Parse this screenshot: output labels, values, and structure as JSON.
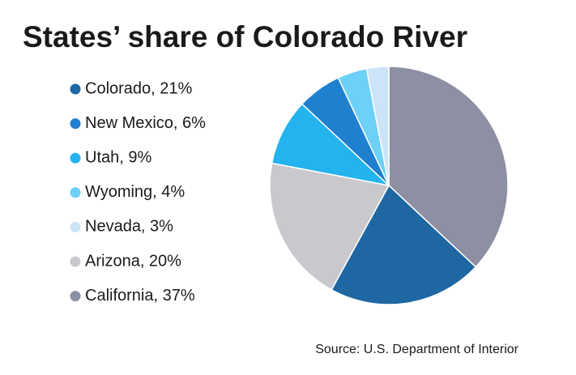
{
  "chart_data": {
    "type": "pie",
    "title": "States’ share of Colorado River",
    "source": "Source: U.S. Department of Interior",
    "categories": [
      "California, 37%",
      "Colorado, 21%",
      "Arizona, 20%",
      "Utah, 9%",
      "New Mexico, 6%",
      "Wyoming, 4%",
      "Nevada, 3%"
    ],
    "values": [
      37,
      21,
      20,
      9,
      6,
      4,
      3
    ],
    "colors": [
      "#8d8fa3",
      "#1e67a2",
      "#c9c9cd",
      "#23b3ee",
      "#1f80cf",
      "#6dd0f7",
      "#cce3f8"
    ]
  }
}
